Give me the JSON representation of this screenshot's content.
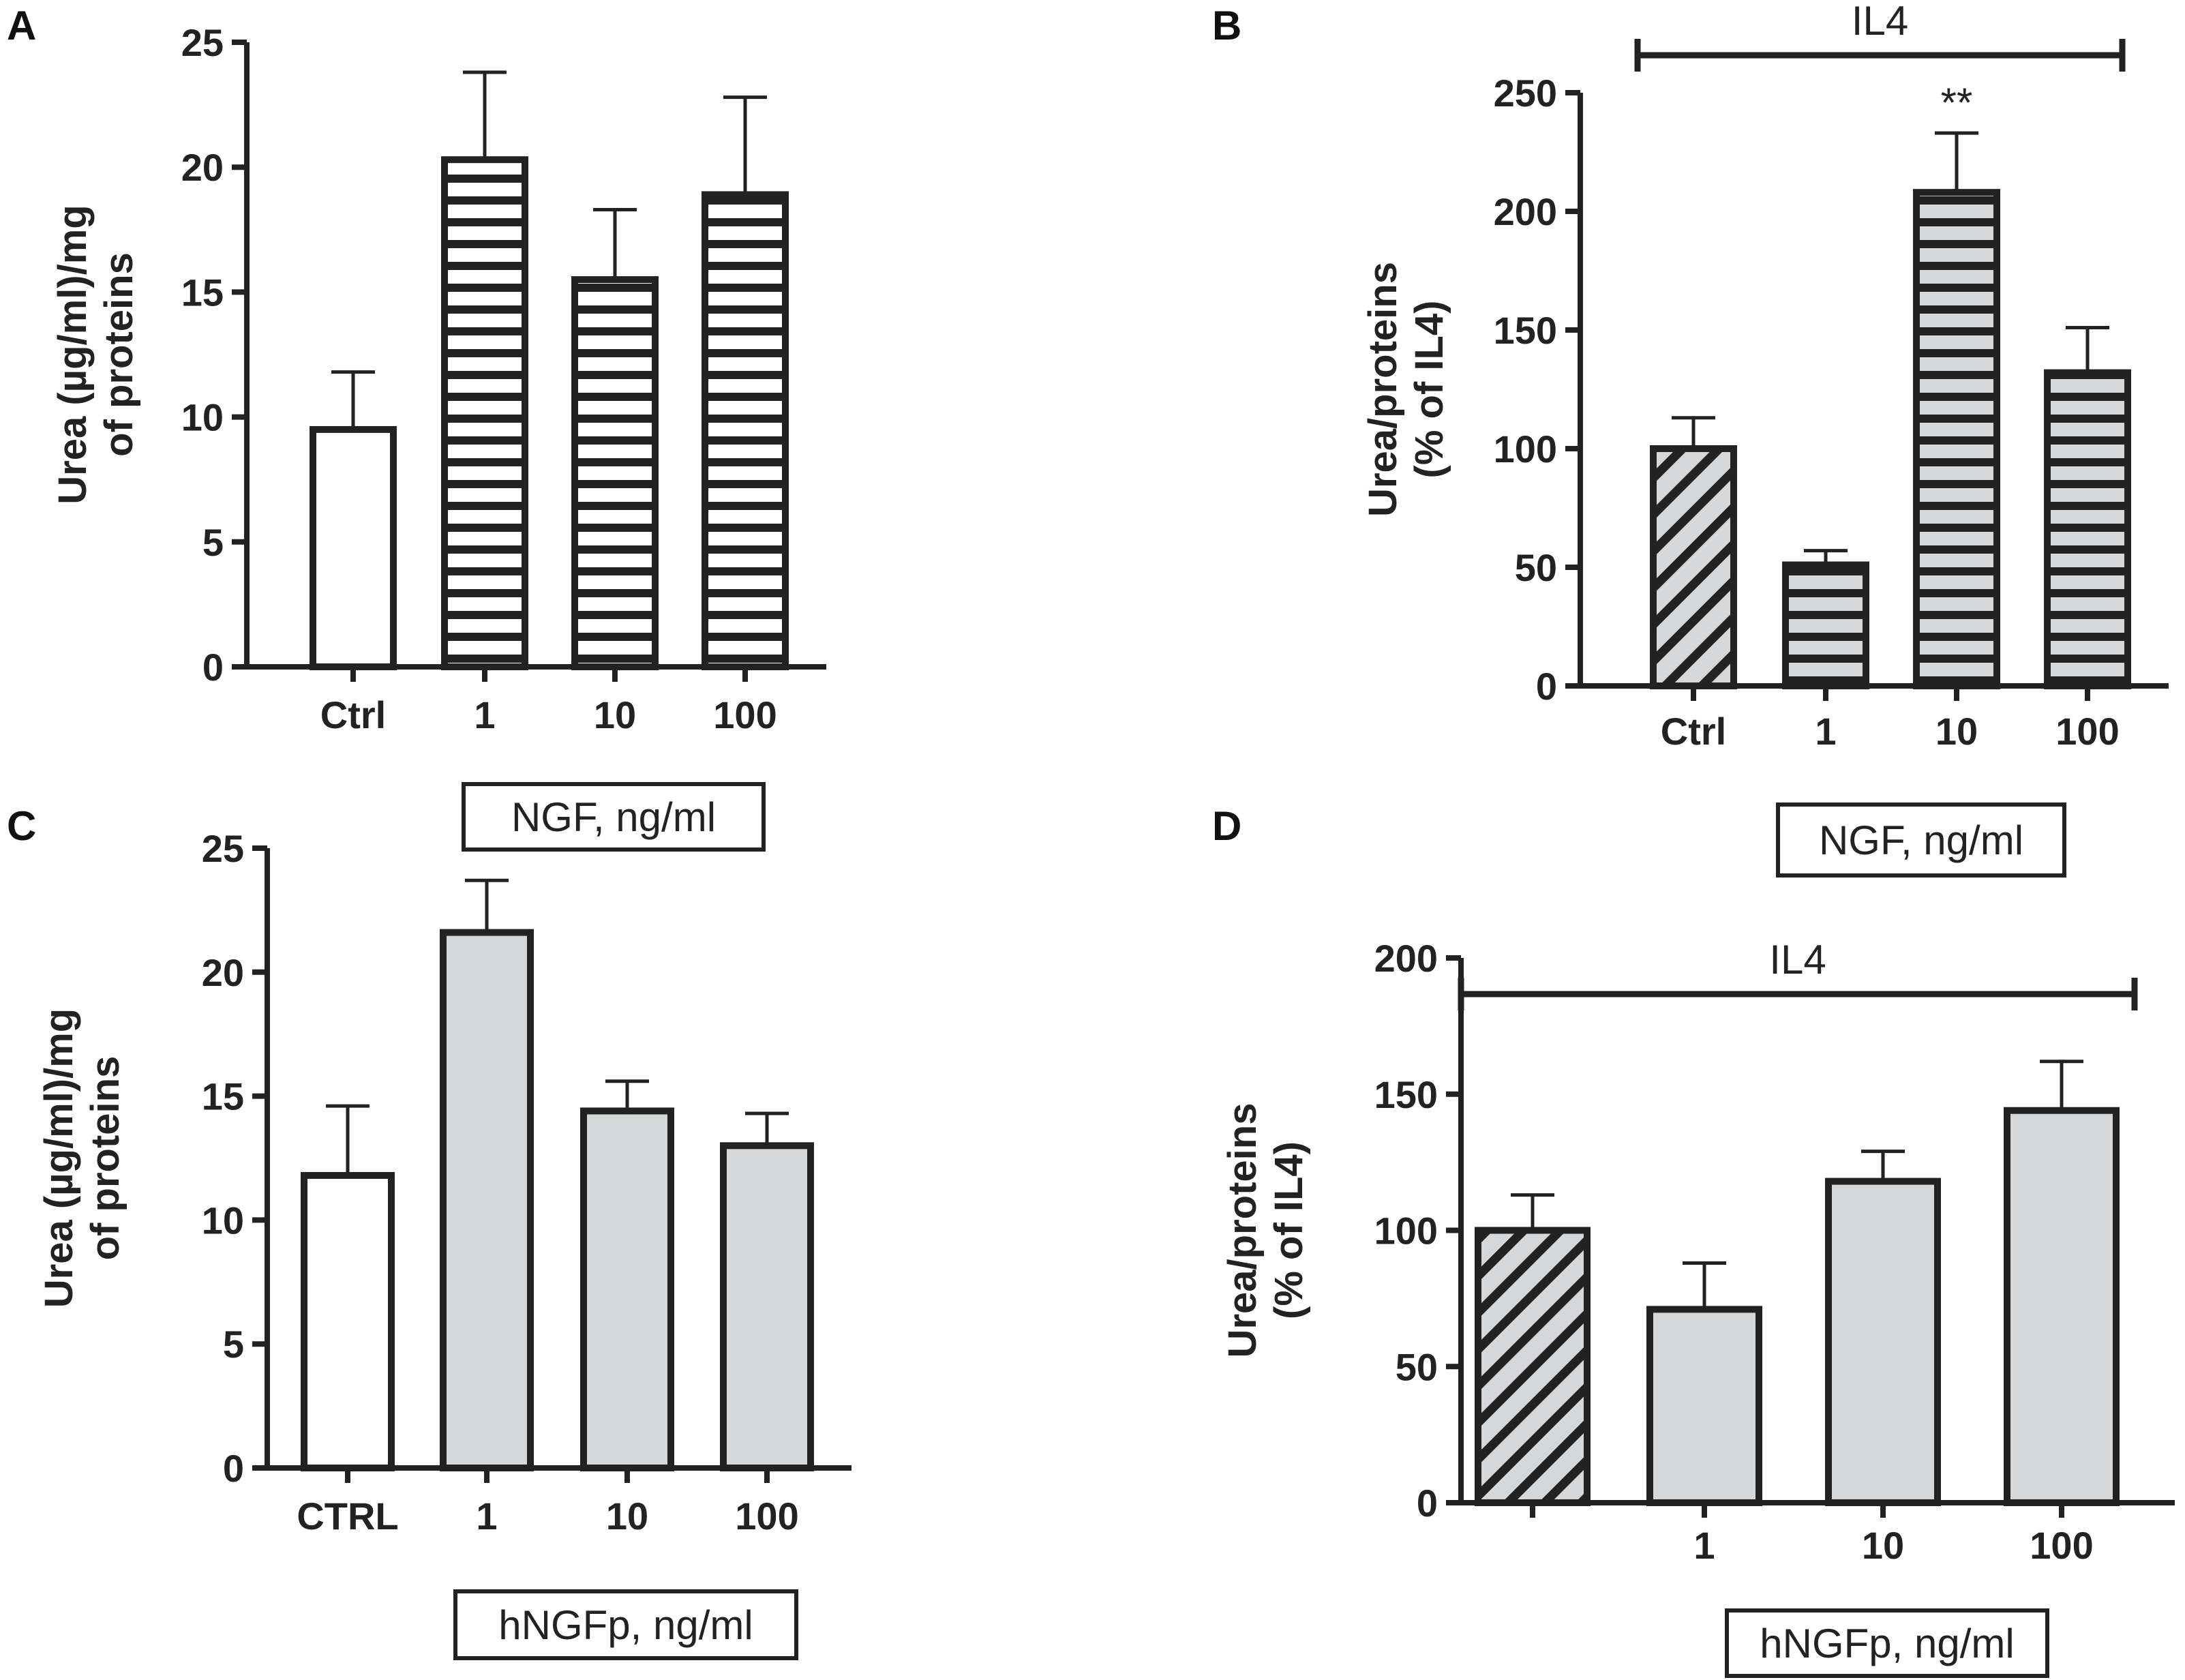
{
  "figure": {
    "colors": {
      "ink": "#222222",
      "grey_fill": "#d6d7d9",
      "white_fill": "#ffffff"
    },
    "panels": [
      {
        "letter": "A",
        "ylabel_lines": [
          "Urea (µg/ml)/mg",
          "of proteins"
        ],
        "xcaption": "NGF, ng/ml",
        "bracket_label": null,
        "significance_label": null
      },
      {
        "letter": "B",
        "ylabel_lines": [
          "Urea/proteins",
          "(% of IL4)"
        ],
        "xcaption": "NGF, ng/ml",
        "bracket_label": "IL4",
        "significance_label": "**"
      },
      {
        "letter": "C",
        "ylabel_lines": [
          "Urea (µg/ml)/mg",
          "of proteins"
        ],
        "xcaption": "hNGFp, ng/ml",
        "bracket_label": null,
        "significance_label": null
      },
      {
        "letter": "D",
        "ylabel_lines": [
          "Urea/proteins",
          "(% of IL4)"
        ],
        "xcaption": "hNGFp, ng/ml",
        "bracket_label": "IL4",
        "significance_label": null
      }
    ]
  },
  "chart_data": [
    {
      "type": "bar",
      "panel": "A",
      "categories": [
        "Ctrl",
        "1",
        "10",
        "100"
      ],
      "values": [
        9.5,
        20.3,
        15.5,
        18.9
      ],
      "errors": [
        2.3,
        3.5,
        2.8,
        3.9
      ],
      "bar_styles": [
        "white",
        "hstripe-white",
        "hstripe-white",
        "hstripe-white"
      ],
      "title": "",
      "xlabel": "NGF, ng/ml",
      "ylabel": "Urea (µg/ml)/mg of proteins",
      "ylim": [
        0,
        25
      ],
      "yticks": [
        0,
        5,
        10,
        15,
        20,
        25
      ]
    },
    {
      "type": "bar",
      "panel": "B",
      "categories": [
        "Ctrl",
        "1",
        "10",
        "100"
      ],
      "values": [
        100,
        51,
        208,
        132
      ],
      "errors": [
        13,
        6,
        25,
        19
      ],
      "bar_styles": [
        "diag-grey",
        "hstripe-grey",
        "hstripe-grey",
        "hstripe-grey"
      ],
      "annotations": [
        {
          "category": "10",
          "text": "**"
        }
      ],
      "title": "",
      "xlabel": "NGF, ng/ml",
      "ylabel": "Urea/proteins (% of IL4)",
      "ylim": [
        0,
        250
      ],
      "yticks": [
        0,
        50,
        100,
        150,
        200,
        250
      ]
    },
    {
      "type": "bar",
      "panel": "C",
      "categories": [
        "CTRL",
        "1",
        "10",
        "100"
      ],
      "values": [
        11.8,
        21.6,
        14.4,
        13.0
      ],
      "errors": [
        2.8,
        2.1,
        1.2,
        1.3
      ],
      "bar_styles": [
        "white",
        "grey",
        "grey",
        "grey"
      ],
      "title": "",
      "xlabel": "hNGFp, ng/ml",
      "ylabel": "Urea (µg/ml)/mg of proteins",
      "ylim": [
        0,
        25
      ],
      "yticks": [
        0,
        5,
        10,
        15,
        20,
        25
      ]
    },
    {
      "type": "bar",
      "panel": "D",
      "categories": [
        "",
        "1",
        "10",
        "100"
      ],
      "values": [
        100,
        71,
        118,
        144
      ],
      "errors": [
        13,
        17,
        11,
        18
      ],
      "bar_styles": [
        "diag-grey",
        "grey",
        "grey",
        "grey"
      ],
      "title": "",
      "xlabel": "hNGFp, ng/ml",
      "ylabel": "Urea/proteins (% of IL4)",
      "ylim": [
        0,
        200
      ],
      "yticks": [
        0,
        50,
        100,
        150,
        200
      ]
    }
  ]
}
